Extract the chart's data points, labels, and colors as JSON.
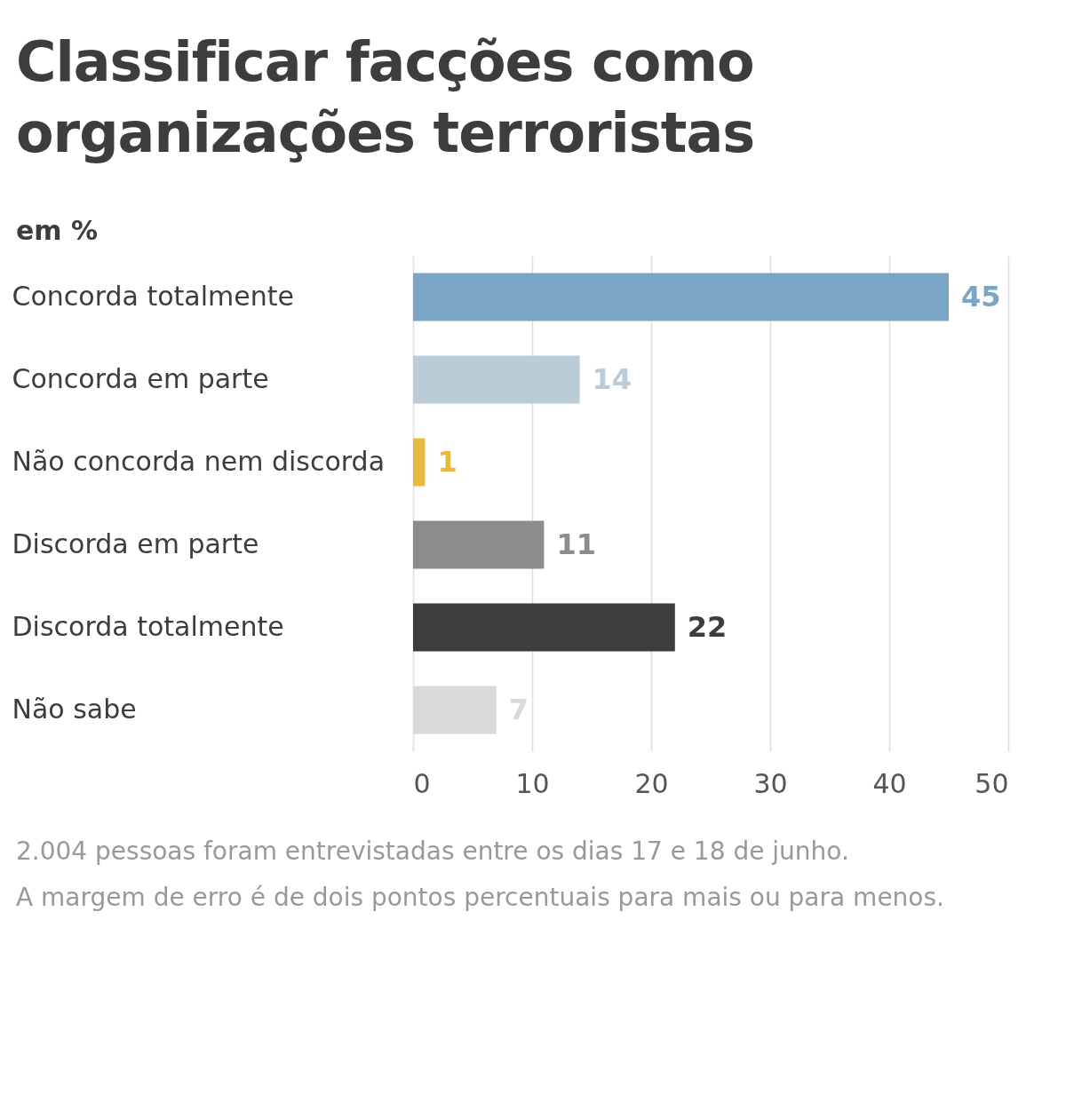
{
  "chart_data": {
    "type": "bar",
    "orientation": "horizontal",
    "title": "Classificar facções como organizações terroristas",
    "subtitle": "em %",
    "categories": [
      "Concorda totalmente",
      "Concorda em parte",
      "Não concorda nem discorda",
      "Discorda em parte",
      "Discorda totalmente",
      "Não sabe"
    ],
    "values": [
      45,
      14,
      1,
      11,
      22,
      7
    ],
    "colors": [
      "#7ba5c4",
      "#b9ccd8",
      "#e8b93c",
      "#8c8c8c",
      "#3d3d3d",
      "#d9d9d9"
    ],
    "xlim": [
      0,
      50
    ],
    "xticks": [
      0,
      10,
      20,
      30,
      40,
      50
    ],
    "grid": "x",
    "data_labels": true,
    "legend": false,
    "annotations": [
      "2.004 pessoas foram entrevistadas entre os dias 17 e 18 de junho.",
      "A margem de erro é de dois pontos percentuais para mais ou para menos."
    ]
  }
}
